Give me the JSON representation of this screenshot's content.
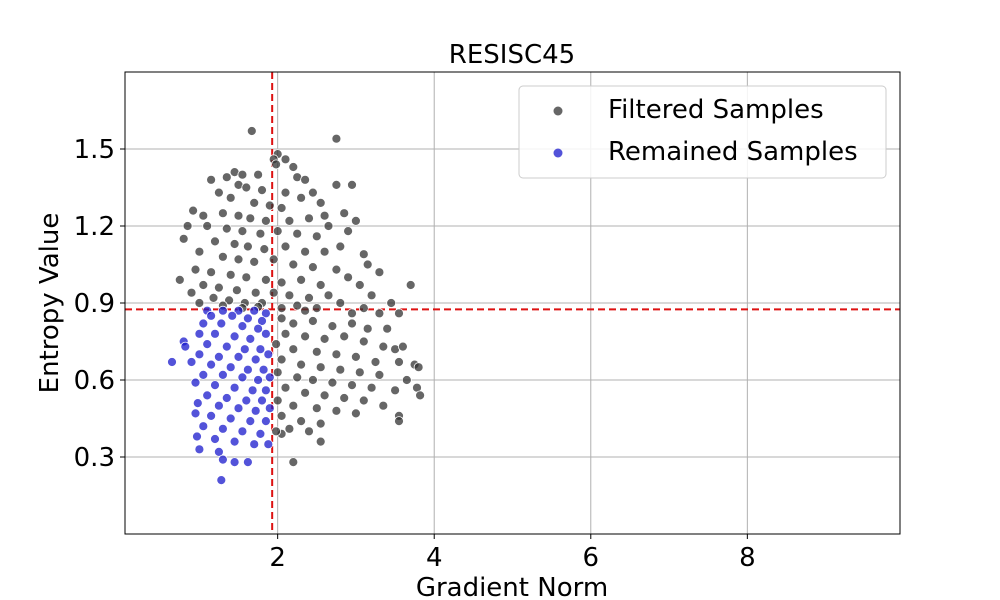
{
  "chart_data": {
    "type": "scatter",
    "title": "RESISC45",
    "xlabel": "Gradient Norm",
    "ylabel": "Entropy Value",
    "xlim": [
      0.05,
      9.95
    ],
    "ylim": [
      0.0,
      1.8
    ],
    "xticks": [
      2,
      4,
      6,
      8
    ],
    "yticks": [
      0.3,
      0.6,
      0.9,
      1.2,
      1.5
    ],
    "xtick_labels": [
      "2",
      "4",
      "6",
      "8"
    ],
    "ytick_labels": [
      "0.3",
      "0.6",
      "0.9",
      "1.2",
      "1.5"
    ],
    "grid": true,
    "legend_position": "top-right",
    "thresholds": {
      "x": 1.93,
      "y": 0.875,
      "color": "#dd1111",
      "style": "dashed"
    },
    "series": [
      {
        "name": "Filtered Samples",
        "color": "#333333",
        "points": [
          [
            1.67,
            1.57
          ],
          [
            2.75,
            1.54
          ],
          [
            2.0,
            1.48
          ],
          [
            1.95,
            1.46
          ],
          [
            1.98,
            1.44
          ],
          [
            2.1,
            1.46
          ],
          [
            2.2,
            1.43
          ],
          [
            1.45,
            1.41
          ],
          [
            1.55,
            1.4
          ],
          [
            1.75,
            1.4
          ],
          [
            1.35,
            1.39
          ],
          [
            1.15,
            1.38
          ],
          [
            2.25,
            1.39
          ],
          [
            2.35,
            1.38
          ],
          [
            2.75,
            1.36
          ],
          [
            2.95,
            1.36
          ],
          [
            1.5,
            1.36
          ],
          [
            1.6,
            1.35
          ],
          [
            1.8,
            1.34
          ],
          [
            2.1,
            1.33
          ],
          [
            1.25,
            1.33
          ],
          [
            1.4,
            1.31
          ],
          [
            2.45,
            1.33
          ],
          [
            2.3,
            1.31
          ],
          [
            2.55,
            1.29
          ],
          [
            1.7,
            1.29
          ],
          [
            1.9,
            1.28
          ],
          [
            2.05,
            1.27
          ],
          [
            0.92,
            1.26
          ],
          [
            1.05,
            1.24
          ],
          [
            1.3,
            1.25
          ],
          [
            1.5,
            1.24
          ],
          [
            1.65,
            1.23
          ],
          [
            1.85,
            1.22
          ],
          [
            2.15,
            1.22
          ],
          [
            2.4,
            1.23
          ],
          [
            2.6,
            1.24
          ],
          [
            2.85,
            1.25
          ],
          [
            3.0,
            1.22
          ],
          [
            2.65,
            1.2
          ],
          [
            0.85,
            1.2
          ],
          [
            1.1,
            1.2
          ],
          [
            1.35,
            1.19
          ],
          [
            1.55,
            1.18
          ],
          [
            1.78,
            1.17
          ],
          [
            2.0,
            1.18
          ],
          [
            2.25,
            1.17
          ],
          [
            2.5,
            1.16
          ],
          [
            2.8,
            1.12
          ],
          [
            2.9,
            1.18
          ],
          [
            0.8,
            1.15
          ],
          [
            1.2,
            1.14
          ],
          [
            1.45,
            1.13
          ],
          [
            1.62,
            1.12
          ],
          [
            1.83,
            1.11
          ],
          [
            2.1,
            1.12
          ],
          [
            2.35,
            1.1
          ],
          [
            2.6,
            1.1
          ],
          [
            3.1,
            1.09
          ],
          [
            3.15,
            1.05
          ],
          [
            1.0,
            1.1
          ],
          [
            1.3,
            1.08
          ],
          [
            1.5,
            1.07
          ],
          [
            1.7,
            1.06
          ],
          [
            1.95,
            1.07
          ],
          [
            2.2,
            1.05
          ],
          [
            2.45,
            1.04
          ],
          [
            2.75,
            1.03
          ],
          [
            3.3,
            1.02
          ],
          [
            2.9,
            1.0
          ],
          [
            0.95,
            1.03
          ],
          [
            1.15,
            1.02
          ],
          [
            1.4,
            1.01
          ],
          [
            1.6,
            1.0
          ],
          [
            1.85,
            0.99
          ],
          [
            2.05,
            0.98
          ],
          [
            2.3,
            0.99
          ],
          [
            2.55,
            0.97
          ],
          [
            3.05,
            0.97
          ],
          [
            3.7,
            0.97
          ],
          [
            0.75,
            0.99
          ],
          [
            1.05,
            0.97
          ],
          [
            1.25,
            0.96
          ],
          [
            1.48,
            0.95
          ],
          [
            1.72,
            0.94
          ],
          [
            1.95,
            0.94
          ],
          [
            2.15,
            0.93
          ],
          [
            2.4,
            0.92
          ],
          [
            2.65,
            0.93
          ],
          [
            3.2,
            0.93
          ],
          [
            0.9,
            0.94
          ],
          [
            1.18,
            0.92
          ],
          [
            1.38,
            0.91
          ],
          [
            1.58,
            0.9
          ],
          [
            1.8,
            0.9
          ],
          [
            2.25,
            0.89
          ],
          [
            2.5,
            0.88
          ],
          [
            2.8,
            0.9
          ],
          [
            3.1,
            0.88
          ],
          [
            3.45,
            0.9
          ],
          [
            1.0,
            0.9
          ],
          [
            1.3,
            0.89
          ],
          [
            1.55,
            0.88
          ],
          [
            1.75,
            0.885
          ],
          [
            2.05,
            0.88
          ],
          [
            2.35,
            0.87
          ],
          [
            2.95,
            0.86
          ],
          [
            3.3,
            0.86
          ],
          [
            3.55,
            0.86
          ],
          [
            2.05,
            0.84
          ],
          [
            2.2,
            0.82
          ],
          [
            2.45,
            0.83
          ],
          [
            2.7,
            0.81
          ],
          [
            2.95,
            0.82
          ],
          [
            3.15,
            0.8
          ],
          [
            3.4,
            0.8
          ],
          [
            2.1,
            0.78
          ],
          [
            2.35,
            0.77
          ],
          [
            2.6,
            0.76
          ],
          [
            2.85,
            0.77
          ],
          [
            3.1,
            0.75
          ],
          [
            3.35,
            0.73
          ],
          [
            3.5,
            0.72
          ],
          [
            3.6,
            0.73
          ],
          [
            1.98,
            0.74
          ],
          [
            2.2,
            0.72
          ],
          [
            2.5,
            0.71
          ],
          [
            2.75,
            0.7
          ],
          [
            3.0,
            0.69
          ],
          [
            3.25,
            0.67
          ],
          [
            3.55,
            0.67
          ],
          [
            3.75,
            0.66
          ],
          [
            3.8,
            0.65
          ],
          [
            2.05,
            0.68
          ],
          [
            2.3,
            0.66
          ],
          [
            2.55,
            0.65
          ],
          [
            2.8,
            0.64
          ],
          [
            3.05,
            0.63
          ],
          [
            3.3,
            0.62
          ],
          [
            3.65,
            0.6
          ],
          [
            2.0,
            0.63
          ],
          [
            2.25,
            0.61
          ],
          [
            2.45,
            0.6
          ],
          [
            2.7,
            0.59
          ],
          [
            2.95,
            0.58
          ],
          [
            3.2,
            0.57
          ],
          [
            3.5,
            0.56
          ],
          [
            3.78,
            0.57
          ],
          [
            3.82,
            0.54
          ],
          [
            2.1,
            0.57
          ],
          [
            2.35,
            0.55
          ],
          [
            2.6,
            0.54
          ],
          [
            2.85,
            0.53
          ],
          [
            3.1,
            0.52
          ],
          [
            3.35,
            0.5
          ],
          [
            2.0,
            0.52
          ],
          [
            2.2,
            0.5
          ],
          [
            2.5,
            0.49
          ],
          [
            2.75,
            0.48
          ],
          [
            3.0,
            0.47
          ],
          [
            3.55,
            0.46
          ],
          [
            3.55,
            0.44
          ],
          [
            2.05,
            0.46
          ],
          [
            2.3,
            0.44
          ],
          [
            2.55,
            0.43
          ],
          [
            2.15,
            0.41
          ],
          [
            2.4,
            0.4
          ],
          [
            2.05,
            0.39
          ],
          [
            2.55,
            0.36
          ],
          [
            2.2,
            0.28
          ],
          [
            1.98,
            0.4
          ]
        ]
      },
      {
        "name": "Remained Samples",
        "color": "#1a1acc",
        "points": [
          [
            1.1,
            0.87
          ],
          [
            1.3,
            0.87
          ],
          [
            1.5,
            0.87
          ],
          [
            1.7,
            0.87
          ],
          [
            1.85,
            0.86
          ],
          [
            1.15,
            0.85
          ],
          [
            1.42,
            0.85
          ],
          [
            1.62,
            0.84
          ],
          [
            1.8,
            0.83
          ],
          [
            1.05,
            0.82
          ],
          [
            1.28,
            0.82
          ],
          [
            1.55,
            0.81
          ],
          [
            1.75,
            0.8
          ],
          [
            0.8,
            0.75
          ],
          [
            1.0,
            0.78
          ],
          [
            1.2,
            0.78
          ],
          [
            1.45,
            0.77
          ],
          [
            1.65,
            0.76
          ],
          [
            1.85,
            0.78
          ],
          [
            0.82,
            0.73
          ],
          [
            1.1,
            0.74
          ],
          [
            1.35,
            0.73
          ],
          [
            1.58,
            0.72
          ],
          [
            1.78,
            0.72
          ],
          [
            1.0,
            0.7
          ],
          [
            1.25,
            0.69
          ],
          [
            1.5,
            0.69
          ],
          [
            1.72,
            0.68
          ],
          [
            1.88,
            0.7
          ],
          [
            0.9,
            0.67
          ],
          [
            0.65,
            0.67
          ],
          [
            1.15,
            0.66
          ],
          [
            1.4,
            0.65
          ],
          [
            1.62,
            0.64
          ],
          [
            1.82,
            0.64
          ],
          [
            1.05,
            0.62
          ],
          [
            1.3,
            0.62
          ],
          [
            1.55,
            0.61
          ],
          [
            1.75,
            0.6
          ],
          [
            1.9,
            0.61
          ],
          [
            0.95,
            0.59
          ],
          [
            1.2,
            0.58
          ],
          [
            1.45,
            0.57
          ],
          [
            1.68,
            0.56
          ],
          [
            1.85,
            0.56
          ],
          [
            1.1,
            0.54
          ],
          [
            1.35,
            0.53
          ],
          [
            1.6,
            0.52
          ],
          [
            1.8,
            0.52
          ],
          [
            0.98,
            0.51
          ],
          [
            1.25,
            0.5
          ],
          [
            1.5,
            0.49
          ],
          [
            1.72,
            0.48
          ],
          [
            1.9,
            0.49
          ],
          [
            0.95,
            0.47
          ],
          [
            1.15,
            0.46
          ],
          [
            1.4,
            0.45
          ],
          [
            1.65,
            0.44
          ],
          [
            1.85,
            0.44
          ],
          [
            1.05,
            0.42
          ],
          [
            1.3,
            0.41
          ],
          [
            1.55,
            0.4
          ],
          [
            1.78,
            0.39
          ],
          [
            0.97,
            0.38
          ],
          [
            1.2,
            0.37
          ],
          [
            1.45,
            0.36
          ],
          [
            1.7,
            0.35
          ],
          [
            1.88,
            0.35
          ],
          [
            1.0,
            0.33
          ],
          [
            1.25,
            0.32
          ],
          [
            1.3,
            0.29
          ],
          [
            1.45,
            0.28
          ],
          [
            1.62,
            0.28
          ],
          [
            1.28,
            0.21
          ]
        ]
      }
    ]
  }
}
